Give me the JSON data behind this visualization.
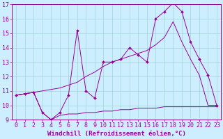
{
  "bg_color": "#cceeff",
  "line_color": "#990099",
  "grid_color": "#99cccc",
  "xlabel": "Windchill (Refroidissement éolien,°C)",
  "tick_fontsize": 6,
  "xlabel_fontsize": 6.5,
  "xlim": [
    -0.5,
    23.5
  ],
  "ylim": [
    9,
    17
  ],
  "xticks": [
    0,
    1,
    2,
    3,
    4,
    5,
    6,
    7,
    8,
    9,
    10,
    11,
    12,
    13,
    14,
    15,
    16,
    17,
    18,
    19,
    20,
    21,
    22,
    23
  ],
  "yticks": [
    9,
    10,
    11,
    12,
    13,
    14,
    15,
    16,
    17
  ],
  "jagged_x": [
    0,
    1,
    2,
    3,
    4,
    5,
    6,
    7,
    8,
    9,
    10,
    11,
    12,
    13,
    14,
    15,
    16,
    17,
    18,
    19,
    20,
    21,
    22,
    23
  ],
  "jagged_y": [
    10.7,
    10.8,
    10.9,
    9.5,
    9.0,
    9.5,
    10.7,
    15.2,
    11.0,
    10.5,
    13.0,
    13.0,
    13.2,
    14.0,
    13.5,
    13.0,
    16.0,
    16.5,
    17.1,
    16.5,
    14.4,
    13.2,
    12.1,
    10.0
  ],
  "smooth_x": [
    0,
    1,
    2,
    3,
    4,
    5,
    6,
    7,
    8,
    9,
    10,
    11,
    12,
    13,
    14,
    15,
    16,
    17,
    18,
    19,
    20,
    21,
    22,
    23
  ],
  "smooth_y": [
    10.7,
    10.8,
    10.9,
    11.0,
    11.1,
    11.2,
    11.4,
    11.6,
    12.0,
    12.3,
    12.7,
    13.0,
    13.2,
    13.4,
    13.6,
    13.8,
    14.2,
    14.7,
    15.8,
    14.4,
    13.2,
    12.1,
    10.0,
    10.0
  ],
  "bottom_x": [
    0,
    1,
    2,
    3,
    4,
    5,
    6,
    7,
    8,
    9,
    10,
    11,
    12,
    13,
    14,
    15,
    16,
    17,
    18,
    19,
    20,
    21,
    22,
    23
  ],
  "bottom_y": [
    10.7,
    10.8,
    10.9,
    9.5,
    9.0,
    9.3,
    9.4,
    9.4,
    9.5,
    9.5,
    9.6,
    9.6,
    9.7,
    9.7,
    9.8,
    9.8,
    9.8,
    9.9,
    9.9,
    9.9,
    9.9,
    9.9,
    9.9,
    9.9
  ]
}
